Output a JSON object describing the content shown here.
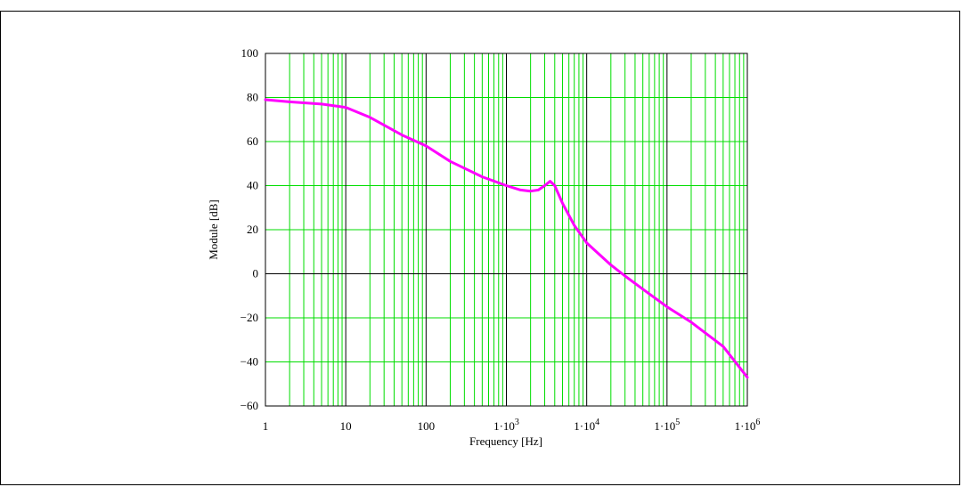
{
  "chart_data": {
    "type": "line",
    "title": "",
    "xlabel": "Frequency [Hz]",
    "ylabel": "Module [dB]",
    "x_scale": "log",
    "xlim": [
      1,
      1000000
    ],
    "ylim": [
      -60,
      100
    ],
    "y_ticks": [
      100,
      80,
      60,
      40,
      20,
      0,
      -20,
      -40,
      -60
    ],
    "y_tick_labels": [
      "100",
      "80",
      "60",
      "40",
      "20",
      "0",
      "−20",
      "−40",
      "−60"
    ],
    "x_ticks": [
      {
        "value": 1,
        "label": "1",
        "sup": ""
      },
      {
        "value": 10,
        "label": "10",
        "sup": ""
      },
      {
        "value": 100,
        "label": "100",
        "sup": ""
      },
      {
        "value": 1000,
        "label": "1·10",
        "sup": "3"
      },
      {
        "value": 10000,
        "label": "1·10",
        "sup": "4"
      },
      {
        "value": 100000,
        "label": "1·10",
        "sup": "5"
      },
      {
        "value": 1000000,
        "label": "1·10",
        "sup": "6"
      }
    ],
    "grid": true,
    "colors": {
      "line": "#ff00ff",
      "grid": "#00dd00",
      "major_grid": "#000000"
    },
    "series": [
      {
        "name": "",
        "points": [
          [
            1,
            79
          ],
          [
            2,
            78
          ],
          [
            5,
            77
          ],
          [
            10,
            75.5
          ],
          [
            20,
            71
          ],
          [
            50,
            63
          ],
          [
            100,
            58
          ],
          [
            200,
            51
          ],
          [
            500,
            44
          ],
          [
            1000,
            40
          ],
          [
            1500,
            38
          ],
          [
            2000,
            37.5
          ],
          [
            2500,
            38
          ],
          [
            3000,
            40
          ],
          [
            3500,
            42
          ],
          [
            4000,
            40
          ],
          [
            5000,
            32
          ],
          [
            7000,
            22
          ],
          [
            10000,
            14
          ],
          [
            20000,
            4
          ],
          [
            30000,
            -1
          ],
          [
            50000,
            -7
          ],
          [
            100000,
            -15
          ],
          [
            200000,
            -22
          ],
          [
            500000,
            -33
          ],
          [
            1000000,
            -47
          ]
        ]
      }
    ]
  }
}
